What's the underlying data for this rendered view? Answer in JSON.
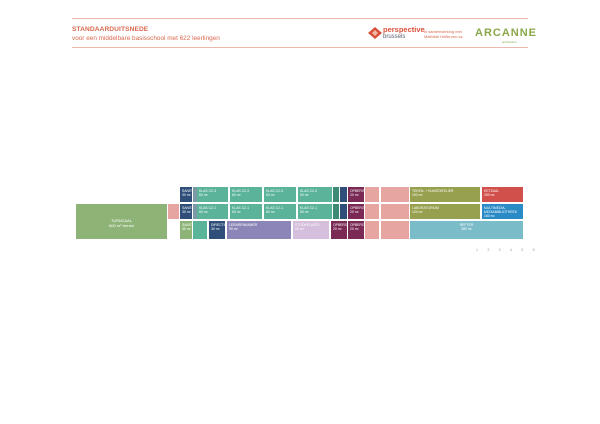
{
  "header": {
    "title": "STANDAARDUITSNEDE",
    "subtitle": "voor een middelbare basisschool met 622 leerlingen",
    "logo_name": "perspective",
    "logo_sub": "brussels",
    "collaboration_line1": "in samenwerking met",
    "collaboration_line2": "Mathilde Heilbronn.ss",
    "partner_logo": "ARCANNE",
    "partner_sub": "architecten"
  },
  "colors": {
    "accent": "#d9694f",
    "classroom": "#5bb39a",
    "gym": "#8db476",
    "navy": "#2f4f7a",
    "purple": "#7a2a54",
    "pink": "#e7a5a1",
    "refter": "#7bbcc9",
    "blue": "#2a8bc6",
    "red": "#d2504b",
    "olive": "#97a04e",
    "lilac": "#8c86b8"
  },
  "rooms": {
    "row1": [
      {
        "label": "sanitair",
        "area": "30 m²"
      },
      {
        "label": "klas c2-3",
        "area": "60 m²"
      },
      {
        "label": "klas c2-3",
        "area": "60 m²"
      },
      {
        "label": "klas c2-3",
        "area": "60 m²"
      },
      {
        "label": "klas c2-3",
        "area": "60 m²"
      },
      {
        "label": "opberging",
        "area": "20 m²"
      },
      {
        "label": "teken- + kunstatelier",
        "area": "100 m²"
      },
      {
        "label": "eetzaal",
        "area": "250 m²"
      }
    ],
    "row2": [
      {
        "label": "sanitair",
        "area": "30 m²"
      },
      {
        "label": "klas c2-1",
        "area": "60 m²"
      },
      {
        "label": "klas c2-1",
        "area": "60 m²"
      },
      {
        "label": "klas c2-1",
        "area": "60 m²"
      },
      {
        "label": "klas c2-1",
        "area": "60 m²"
      },
      {
        "label": "opberging",
        "area": "20 m²"
      },
      {
        "label": "laboratorium",
        "area": "120 m²"
      },
      {
        "label": "multimedia- mediabibliotheek",
        "area": "160 m²"
      }
    ],
    "row3": [
      {
        "label": "sanitair",
        "area": "30 m²"
      },
      {
        "label": "directie",
        "area": "30 m²"
      },
      {
        "label": "lerarenkamer",
        "area": "90 m²"
      },
      {
        "label": "stookplaats",
        "area": "60 m²"
      },
      {
        "label": "opberging",
        "area": "20 m²"
      },
      {
        "label": "opberging",
        "area": "20 m²"
      },
      {
        "label": "refter",
        "area": "280 m²"
      }
    ],
    "gym": {
      "label": "turnzaal",
      "area": "600 m² terrain"
    }
  },
  "pager": "1 2 3 4 5 6"
}
